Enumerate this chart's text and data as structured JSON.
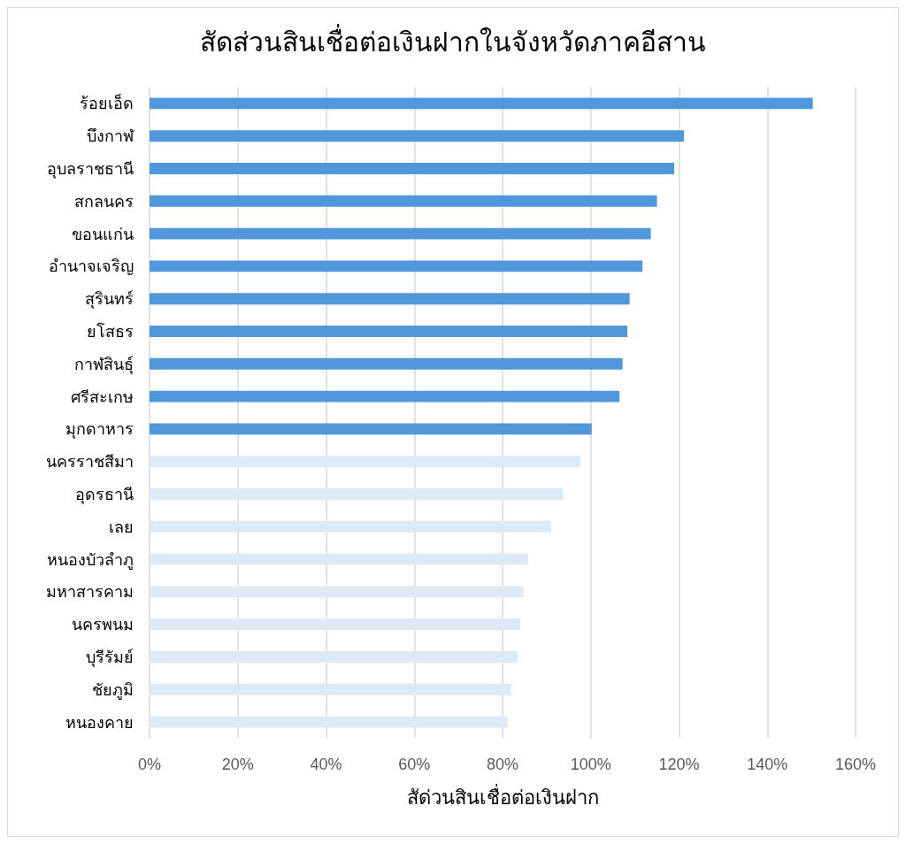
{
  "chart_data": {
    "type": "bar",
    "orientation": "horizontal",
    "title": "สัดส่วนสินเชื่อต่อเงินฝากในจังหวัดภาคอีสาน",
    "xlabel": "สัด่วนสินเชื่อต่อเงินฝาก",
    "categories": [
      "ร้อยเอ็ด",
      "บึงกาฬ",
      "อุบลราชธานี",
      "สกลนคร",
      "ขอนแก่น",
      "อำนาจเจริญ",
      "สุรินทร์",
      "ยโสธร",
      "กาฬสินธุ์",
      "ศรีสะเกษ",
      "มุกดาหาร",
      "นครราชสีมา",
      "อุดรธานี",
      "เลย",
      "หนองบัวลำภู",
      "มหาสารคาม",
      "นครพนม",
      "บุรีรัมย์",
      "ชัยภูมิ",
      "หนองคาย"
    ],
    "values": [
      150.3,
      121.1,
      118.9,
      115.0,
      113.6,
      111.7,
      108.8,
      108.3,
      107.2,
      106.5,
      100.2,
      97.7,
      93.7,
      91.0,
      85.8,
      84.7,
      84.0,
      83.4,
      81.9,
      81.1
    ],
    "colors": [
      "#5097db",
      "#5097db",
      "#5097db",
      "#5097db",
      "#5097db",
      "#5097db",
      "#5097db",
      "#5097db",
      "#5097db",
      "#5097db",
      "#5097db",
      "#dce9f7",
      "#dce9f7",
      "#dce9f7",
      "#dce9f7",
      "#dce9f7",
      "#dce9f7",
      "#dce9f7",
      "#dce9f7",
      "#dce9f7"
    ],
    "xlim": [
      0,
      160
    ],
    "xticks": [
      {
        "value": 0,
        "label": "0%"
      },
      {
        "value": 20,
        "label": "20%"
      },
      {
        "value": 40,
        "label": "40%"
      },
      {
        "value": 60,
        "label": "60%"
      },
      {
        "value": 80,
        "label": "80%"
      },
      {
        "value": 100,
        "label": "100%"
      },
      {
        "value": 120,
        "label": "120%"
      },
      {
        "value": 140,
        "label": "140%"
      },
      {
        "value": 160,
        "label": "160%"
      }
    ],
    "grid": "x"
  }
}
